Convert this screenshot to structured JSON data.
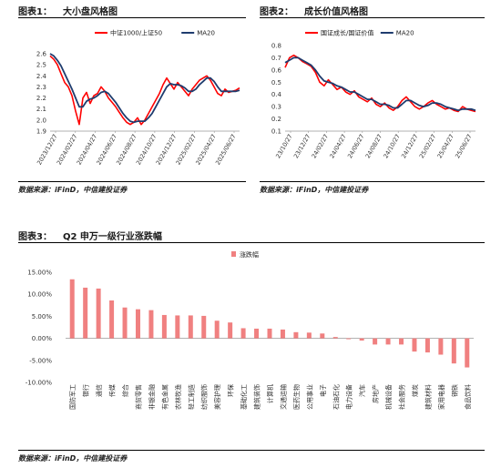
{
  "figures": [
    {
      "label": "图表1：",
      "title": "大小盘风格图",
      "source": "数据来源：iFinD，中信建投证券"
    },
    {
      "label": "图表2：",
      "title": "成长价值风格图",
      "source": "数据来源：iFinD，中信建投证券"
    },
    {
      "label": "图表3：",
      "title": "Q2 申万一级行业涨跌幅",
      "source": "数据来源：iFinD，中信建投证券"
    }
  ],
  "colors": {
    "red": "#ff0000",
    "navy": "#1f3c6e",
    "bar": "#f08080"
  },
  "chart_data": [
    {
      "type": "line",
      "title": "大小盘风格图",
      "ylim": [
        1.9,
        2.6
      ],
      "yticks": [
        "2.6",
        "2.5",
        "2.4",
        "2.3",
        "2.2",
        "2.1",
        "2.0",
        "1.9"
      ],
      "xticks": [
        "2023/12/27",
        "2024/02/27",
        "2024/04/27",
        "2024/06/27",
        "2024/08/27",
        "2024/10/27",
        "2024/12/27",
        "2025/02/27",
        "2025/04/27",
        "2025/06/27"
      ],
      "legend_position": "top",
      "series": [
        {
          "name": "中证1000/上证50",
          "color": "#ff0000",
          "values": [
            2.58,
            2.55,
            2.5,
            2.42,
            2.34,
            2.3,
            2.22,
            2.08,
            1.96,
            2.2,
            2.25,
            2.15,
            2.22,
            2.24,
            2.3,
            2.26,
            2.2,
            2.16,
            2.12,
            2.07,
            2.02,
            1.98,
            1.96,
            1.98,
            2.02,
            1.96,
            2.0,
            2.06,
            2.12,
            2.18,
            2.24,
            2.32,
            2.38,
            2.33,
            2.28,
            2.34,
            2.3,
            2.26,
            2.22,
            2.28,
            2.32,
            2.36,
            2.38,
            2.4,
            2.36,
            2.3,
            2.24,
            2.22,
            2.28,
            2.25,
            2.26,
            2.27,
            2.29
          ]
        },
        {
          "name": "MA20",
          "color": "#1f3c6e",
          "values": [
            2.6,
            2.58,
            2.54,
            2.49,
            2.42,
            2.35,
            2.28,
            2.2,
            2.12,
            2.12,
            2.17,
            2.19,
            2.2,
            2.22,
            2.25,
            2.26,
            2.24,
            2.2,
            2.16,
            2.11,
            2.06,
            2.02,
            1.99,
            1.98,
            1.99,
            1.99,
            1.99,
            2.02,
            2.06,
            2.12,
            2.18,
            2.24,
            2.3,
            2.33,
            2.32,
            2.32,
            2.31,
            2.29,
            2.26,
            2.26,
            2.28,
            2.32,
            2.35,
            2.38,
            2.38,
            2.35,
            2.3,
            2.26,
            2.26,
            2.26,
            2.26,
            2.26,
            2.27
          ]
        }
      ]
    },
    {
      "type": "line",
      "title": "成长价值风格图",
      "ylim": [
        0.1,
        0.8
      ],
      "yticks": [
        "0.8",
        "0.7",
        "0.6",
        "0.5",
        "0.4",
        "0.3",
        "0.2",
        "0.1"
      ],
      "xticks": [
        "23/10/27",
        "23/12/27",
        "24/02/27",
        "24/04/27",
        "24/06/27",
        "24/08/27",
        "24/10/27",
        "24/12/27",
        "25/02/27",
        "25/04/27",
        "25/06/27"
      ],
      "legend_position": "top",
      "series": [
        {
          "name": "国证成长/国证价值",
          "color": "#ff0000",
          "values": [
            0.62,
            0.7,
            0.72,
            0.7,
            0.67,
            0.65,
            0.63,
            0.58,
            0.5,
            0.47,
            0.52,
            0.48,
            0.44,
            0.46,
            0.42,
            0.4,
            0.43,
            0.38,
            0.36,
            0.34,
            0.37,
            0.32,
            0.3,
            0.33,
            0.29,
            0.27,
            0.3,
            0.35,
            0.38,
            0.34,
            0.3,
            0.28,
            0.3,
            0.33,
            0.35,
            0.32,
            0.3,
            0.28,
            0.29,
            0.27,
            0.26,
            0.3,
            0.28,
            0.27,
            0.26
          ]
        },
        {
          "name": "MA20",
          "color": "#1f3c6e",
          "values": [
            0.66,
            0.68,
            0.7,
            0.7,
            0.68,
            0.66,
            0.64,
            0.6,
            0.55,
            0.51,
            0.5,
            0.49,
            0.47,
            0.46,
            0.44,
            0.42,
            0.42,
            0.4,
            0.38,
            0.36,
            0.36,
            0.34,
            0.32,
            0.32,
            0.31,
            0.29,
            0.29,
            0.32,
            0.35,
            0.35,
            0.33,
            0.31,
            0.3,
            0.31,
            0.33,
            0.33,
            0.32,
            0.3,
            0.29,
            0.28,
            0.27,
            0.28,
            0.28,
            0.28,
            0.27
          ]
        }
      ]
    },
    {
      "type": "bar",
      "title": "Q2 申万一级行业涨跌幅",
      "series_name": "涨跌幅",
      "ylim": [
        -10,
        15
      ],
      "yticks": [
        "15.00%",
        "10.00%",
        "5.00%",
        "0.00%",
        "-5.00%",
        "-10.00%"
      ],
      "categories": [
        "国防军工",
        "银行",
        "通信",
        "传媒",
        "综合",
        "商贸零售",
        "非银金融",
        "有色金属",
        "农林牧渔",
        "轻工制造",
        "纺织服饰",
        "美容护理",
        "环保",
        "基础化工",
        "建筑装饰",
        "计算机",
        "交通运输",
        "医药生物",
        "公用事业",
        "电子",
        "石油石化",
        "电力设备",
        "汽车",
        "房地产",
        "机械设备",
        "社会服务",
        "煤炭",
        "建筑材料",
        "家用电器",
        "钢铁",
        "食品饮料"
      ],
      "values": [
        13.4,
        11.5,
        11.3,
        8.6,
        7.0,
        6.6,
        6.4,
        5.3,
        5.2,
        5.2,
        5.1,
        4.0,
        3.6,
        2.3,
        2.2,
        2.2,
        2.0,
        1.4,
        1.3,
        1.1,
        0.3,
        -0.2,
        -0.5,
        -1.4,
        -1.4,
        -1.4,
        -3.0,
        -3.2,
        -3.7,
        -5.7,
        -6.6
      ]
    }
  ]
}
